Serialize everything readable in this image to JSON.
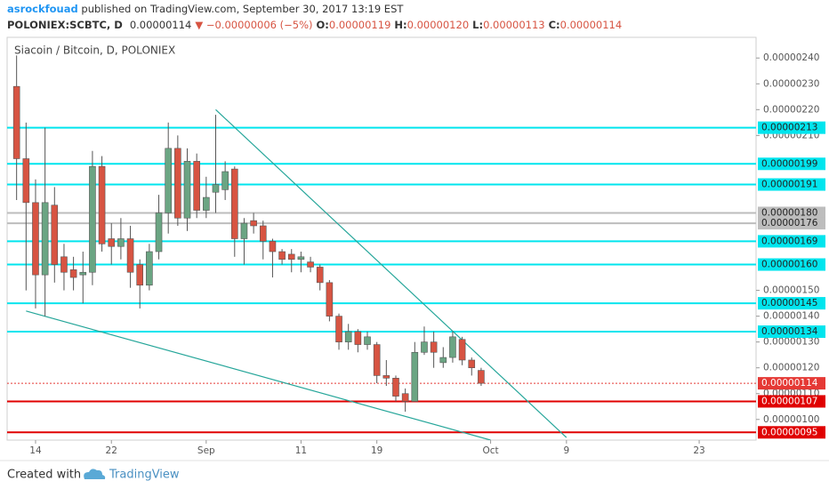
{
  "header": {
    "author": "asrockfouad",
    "published": " published on TradingView.com, September 30, 2017 13:19 EST",
    "symbol": "POLONIEX:SCBTC, D",
    "last": "0.00000114",
    "change": "▼ −0.00000006 (−5%)",
    "o_label": "O:",
    "open": "0.00000119",
    "h_label": "H:",
    "high": "0.00000120",
    "l_label": "L:",
    "low": "0.00000113",
    "c_label": "C:",
    "close": "0.00000114"
  },
  "footer": {
    "created_with": "Created with",
    "brand": "TradingView"
  },
  "chart_data": {
    "type": "candlestick",
    "title": "Siacoin / Bitcoin, D, POLONIEX",
    "up_color": "#6ba583",
    "down_color": "#d75442",
    "x": [
      "2017-08-12",
      "2017-08-13",
      "2017-08-14",
      "2017-08-15",
      "2017-08-16",
      "2017-08-17",
      "2017-08-18",
      "2017-08-19",
      "2017-08-20",
      "2017-08-21",
      "2017-08-22",
      "2017-08-23",
      "2017-08-24",
      "2017-08-25",
      "2017-08-26",
      "2017-08-27",
      "2017-08-28",
      "2017-08-29",
      "2017-08-30",
      "2017-08-31",
      "2017-09-01",
      "2017-09-02",
      "2017-09-03",
      "2017-09-04",
      "2017-09-05",
      "2017-09-06",
      "2017-09-07",
      "2017-09-08",
      "2017-09-09",
      "2017-09-10",
      "2017-09-11",
      "2017-09-12",
      "2017-09-13",
      "2017-09-14",
      "2017-09-15",
      "2017-09-16",
      "2017-09-17",
      "2017-09-18",
      "2017-09-19",
      "2017-09-20",
      "2017-09-21",
      "2017-09-22",
      "2017-09-23",
      "2017-09-24",
      "2017-09-25",
      "2017-09-26",
      "2017-09-27",
      "2017-09-28",
      "2017-09-29",
      "2017-09-30"
    ],
    "open": [
      2.29e-06,
      2.01e-06,
      1.84e-06,
      1.56e-06,
      1.83e-06,
      1.63e-06,
      1.58e-06,
      1.56e-06,
      1.57e-06,
      1.98e-06,
      1.7e-06,
      1.67e-06,
      1.7e-06,
      1.6e-06,
      1.52e-06,
      1.65e-06,
      1.8e-06,
      2.05e-06,
      1.78e-06,
      2e-06,
      1.81e-06,
      1.88e-06,
      1.89e-06,
      1.97e-06,
      1.7e-06,
      1.77e-06,
      1.75e-06,
      1.69e-06,
      1.65e-06,
      1.64e-06,
      1.62e-06,
      1.61e-06,
      1.59e-06,
      1.53e-06,
      1.4e-06,
      1.3e-06,
      1.34e-06,
      1.29e-06,
      1.29e-06,
      1.17e-06,
      1.16e-06,
      1.1e-06,
      1.07e-06,
      1.26e-06,
      1.3e-06,
      1.22e-06,
      1.24e-06,
      1.31e-06,
      1.23e-06,
      1.19e-06
    ],
    "high": [
      2.41e-06,
      2.15e-06,
      1.93e-06,
      2.13e-06,
      1.9e-06,
      1.68e-06,
      1.63e-06,
      1.65e-06,
      2.04e-06,
      2.02e-06,
      1.76e-06,
      1.78e-06,
      1.75e-06,
      1.62e-06,
      1.68e-06,
      1.87e-06,
      2.15e-06,
      2.1e-06,
      2.05e-06,
      2.03e-06,
      1.94e-06,
      2.18e-06,
      2e-06,
      1.98e-06,
      1.78e-06,
      1.8e-06,
      1.77e-06,
      1.7e-06,
      1.66e-06,
      1.66e-06,
      1.65e-06,
      1.63e-06,
      1.6e-06,
      1.54e-06,
      1.41e-06,
      1.37e-06,
      1.35e-06,
      1.34e-06,
      1.3e-06,
      1.23e-06,
      1.17e-06,
      1.12e-06,
      1.3e-06,
      1.36e-06,
      1.34e-06,
      1.28e-06,
      1.34e-06,
      1.32e-06,
      1.24e-06,
      1.2e-06
    ],
    "low": [
      1.85e-06,
      1.5e-06,
      1.43e-06,
      1.4e-06,
      1.53e-06,
      1.5e-06,
      1.5e-06,
      1.45e-06,
      1.52e-06,
      1.65e-06,
      1.6e-06,
      1.62e-06,
      1.51e-06,
      1.43e-06,
      1.5e-06,
      1.62e-06,
      1.72e-06,
      1.75e-06,
      1.73e-06,
      1.78e-06,
      1.78e-06,
      1.8e-06,
      1.85e-06,
      1.63e-06,
      1.6e-06,
      1.72e-06,
      1.62e-06,
      1.55e-06,
      1.6e-06,
      1.57e-06,
      1.57e-06,
      1.57e-06,
      1.5e-06,
      1.38e-06,
      1.27e-06,
      1.27e-06,
      1.26e-06,
      1.27e-06,
      1.14e-06,
      1.13e-06,
      1.07e-06,
      1.03e-06,
      1.07e-06,
      1.25e-06,
      1.2e-06,
      1.2e-06,
      1.22e-06,
      1.21e-06,
      1.17e-06,
      1.13e-06
    ],
    "close": [
      2.01e-06,
      1.84e-06,
      1.56e-06,
      1.84e-06,
      1.6e-06,
      1.57e-06,
      1.55e-06,
      1.57e-06,
      1.98e-06,
      1.68e-06,
      1.67e-06,
      1.7e-06,
      1.57e-06,
      1.52e-06,
      1.65e-06,
      1.8e-06,
      2.05e-06,
      1.78e-06,
      2e-06,
      1.81e-06,
      1.86e-06,
      1.91e-06,
      1.96e-06,
      1.7e-06,
      1.76e-06,
      1.75e-06,
      1.69e-06,
      1.65e-06,
      1.62e-06,
      1.62e-06,
      1.63e-06,
      1.59e-06,
      1.53e-06,
      1.4e-06,
      1.3e-06,
      1.34e-06,
      1.29e-06,
      1.32e-06,
      1.17e-06,
      1.16e-06,
      1.09e-06,
      1.07e-06,
      1.26e-06,
      1.3e-06,
      1.26e-06,
      1.24e-06,
      1.32e-06,
      1.23e-06,
      1.2e-06,
      1.14e-06
    ],
    "xlim": [
      "2017-08-11",
      "2017-10-29"
    ],
    "xticks": [
      {
        "value": "2017-08-14",
        "label": "14"
      },
      {
        "value": "2017-08-22",
        "label": "22"
      },
      {
        "value": "2017-09-01",
        "label": "Sep"
      },
      {
        "value": "2017-09-11",
        "label": "11"
      },
      {
        "value": "2017-09-19",
        "label": "19"
      },
      {
        "value": "2017-10-01",
        "label": "Oct"
      },
      {
        "value": "2017-10-09",
        "label": "9"
      },
      {
        "value": "2017-10-23",
        "label": "23"
      }
    ],
    "ylim": [
      9.2e-07,
      2.48e-06
    ],
    "yticks": [
      {
        "value": 1e-06,
        "label": "0.00000100"
      },
      {
        "value": 1.1e-06,
        "label": "0.00000110"
      },
      {
        "value": 1.2e-06,
        "label": "0.00000120"
      },
      {
        "value": 1.3e-06,
        "label": "0.00000130"
      },
      {
        "value": 1.4e-06,
        "label": "0.00000140"
      },
      {
        "value": 1.5e-06,
        "label": "0.00000150"
      },
      {
        "value": 2.1e-06,
        "label": "0.00000210"
      },
      {
        "value": 2.2e-06,
        "label": "0.00000220"
      },
      {
        "value": 2.3e-06,
        "label": "0.00000230"
      },
      {
        "value": 2.4e-06,
        "label": "0.00000240"
      }
    ],
    "levels": [
      {
        "value": 2.13e-06,
        "label": "0.00000213",
        "color": "#00e5ee"
      },
      {
        "value": 1.99e-06,
        "label": "0.00000199",
        "color": "#00e5ee"
      },
      {
        "value": 1.91e-06,
        "label": "0.00000191",
        "color": "#00e5ee"
      },
      {
        "value": 1.8e-06,
        "label": "0.00000180",
        "color": "#bdbdbd"
      },
      {
        "value": 1.76e-06,
        "label": "0.00000176",
        "color": "#bdbdbd"
      },
      {
        "value": 1.69e-06,
        "label": "0.00000169",
        "color": "#00e5ee"
      },
      {
        "value": 1.6e-06,
        "label": "0.00000160",
        "color": "#00e5ee"
      },
      {
        "value": 1.45e-06,
        "label": "0.00000145",
        "color": "#00e5ee"
      },
      {
        "value": 1.34e-06,
        "label": "0.00000134",
        "color": "#00e5ee"
      },
      {
        "value": 1.14e-06,
        "label": "0.00000114",
        "color": "#e53935",
        "style": "dotted"
      },
      {
        "value": 1.07e-06,
        "label": "0.00000107",
        "color": "#e00000"
      },
      {
        "value": 9.5e-07,
        "label": "0.00000095",
        "color": "#e00000"
      }
    ],
    "trendlines": [
      {
        "x": [
          "2017-09-02",
          "2017-10-09"
        ],
        "y": [
          2.2e-06,
          9.3e-07
        ],
        "color": "#26a69a"
      },
      {
        "x": [
          "2017-08-13",
          "2017-10-01"
        ],
        "y": [
          1.42e-06,
          9.2e-07
        ],
        "color": "#26a69a"
      }
    ]
  }
}
